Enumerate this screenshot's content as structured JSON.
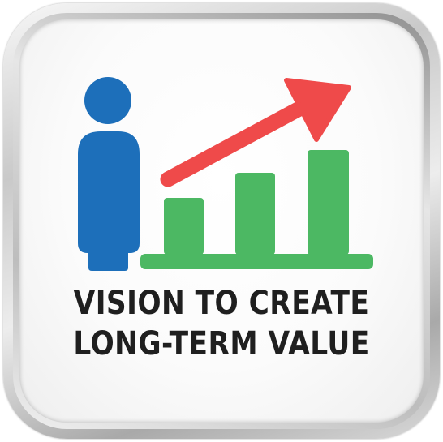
{
  "badge": {
    "line_1": "VISION TO CREATE",
    "line_2": "LONG-TERM VALUE"
  },
  "icons": {
    "person": "person-icon",
    "bars": "bar-chart-icon",
    "arrow": "trend-arrow-icon"
  },
  "colors": {
    "person": "#1d6fba",
    "bars": "#4cb863",
    "arrow": "#ef4a4a",
    "text": "#1f1f1f"
  },
  "bar_levels": [
    0.43,
    0.67,
    0.9
  ]
}
